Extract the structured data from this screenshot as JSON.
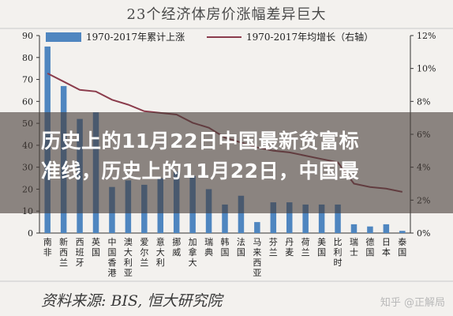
{
  "overlay": {
    "title": "历史上的11月22日中国最新贫富标\n准线，历史上的11月22日，中国最"
  },
  "footer": {
    "source": "资料来源: BIS, 恒大研究院",
    "watermark": "知乎 @正解局"
  },
  "colors": {
    "bar": "#4f86c0",
    "line": "#8b3c4c",
    "background": "#f3f1ee",
    "overlay": "#463c37"
  },
  "chart_data": {
    "type": "bar",
    "title": "23个经济体房价涨幅差异巨大",
    "categories": [
      "南非",
      "新西兰",
      "西班牙",
      "英国",
      "中国香港",
      "澳大利亚",
      "爱尔兰",
      "意大利",
      "挪威",
      "加拿大",
      "瑞典",
      "韩国",
      "法国",
      "马来西亚",
      "芬兰",
      "丹麦",
      "荷兰",
      "美国",
      "比利时",
      "瑞士",
      "德国",
      "日本",
      "泰国"
    ],
    "category_lines": [
      [
        "南",
        "非"
      ],
      [
        "新",
        "西",
        "兰"
      ],
      [
        "西",
        "班",
        "牙"
      ],
      [
        "英",
        "国"
      ],
      [
        "中",
        "国",
        "香",
        "港"
      ],
      [
        "澳",
        "大",
        "利",
        "亚"
      ],
      [
        "爱",
        "尔",
        "兰"
      ],
      [
        "意",
        "大",
        "利"
      ],
      [
        "挪",
        "威"
      ],
      [
        "加",
        "拿",
        "大"
      ],
      [
        "瑞",
        "典"
      ],
      [
        "韩",
        "国"
      ],
      [
        "法",
        "国"
      ],
      [
        "马",
        "来",
        "西",
        "亚"
      ],
      [
        "芬",
        "兰"
      ],
      [
        "丹",
        "麦"
      ],
      [
        "荷",
        "兰"
      ],
      [
        "美",
        "国"
      ],
      [
        "比",
        "利",
        "时"
      ],
      [
        "瑞",
        "士"
      ],
      [
        "德",
        "国"
      ],
      [
        "日",
        "本"
      ],
      [
        "泰",
        "国"
      ]
    ],
    "series": [
      {
        "name": "1970-2017年累计上涨",
        "type": "bar",
        "axis": "left",
        "values": [
          85,
          67,
          52,
          55,
          21,
          24,
          22,
          25,
          28,
          26,
          20,
          13,
          17,
          5,
          14,
          14,
          13,
          13,
          13,
          4,
          3,
          4,
          1
        ]
      },
      {
        "name": "1970-2017年均增长（右轴）",
        "type": "line",
        "axis": "right",
        "values": [
          9.7,
          9.2,
          8.7,
          8.6,
          8.1,
          7.8,
          7.4,
          7.3,
          7.2,
          6.7,
          6.4,
          5.8,
          5.5,
          5.2,
          5.0,
          4.9,
          4.7,
          4.5,
          4.3,
          3.0,
          2.8,
          2.7,
          2.5
        ]
      }
    ],
    "ylim": [
      0,
      90
    ],
    "y_ticks": [
      "0",
      "10",
      "20",
      "30",
      "40",
      "50",
      "60",
      "70",
      "80",
      "90"
    ],
    "y2lim": [
      0,
      12
    ],
    "y2_ticks": [
      "0%",
      "2%",
      "4%",
      "6%",
      "8%",
      "10%",
      "12%"
    ],
    "grid": false,
    "legend_position": "top"
  }
}
